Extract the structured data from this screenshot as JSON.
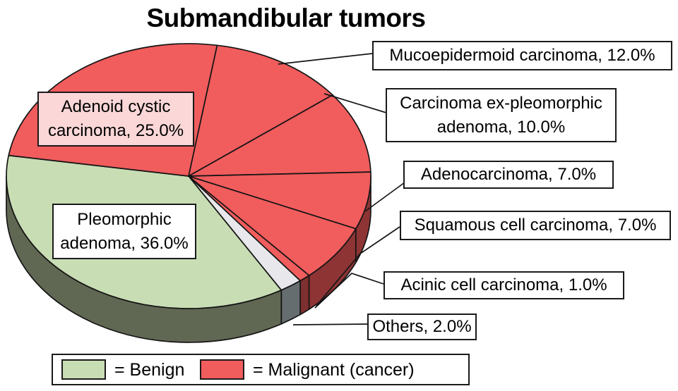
{
  "title": "Submandibular tumors",
  "chart_data": {
    "type": "pie",
    "title": "Submandibular tumors",
    "style": "3d-pie",
    "start_angle_deg": -81,
    "slices": [
      {
        "label": "Mucoepidermoid carcinoma",
        "value": 12.0,
        "group": "malignant",
        "color": "#F15C5D",
        "side_color": "#8E3435"
      },
      {
        "label": "Carcinoma ex-pleomorphic adenoma",
        "value": 10.0,
        "group": "malignant",
        "color": "#F15C5D",
        "side_color": "#8E3435"
      },
      {
        "label": "Adenocarcinoma",
        "value": 7.0,
        "group": "malignant",
        "color": "#F15C5D",
        "side_color": "#8E3435"
      },
      {
        "label": "Squamous cell carcinoma",
        "value": 7.0,
        "group": "malignant",
        "color": "#F15C5D",
        "side_color": "#8E3435"
      },
      {
        "label": "Acinic cell carcinoma",
        "value": 1.0,
        "group": "malignant",
        "color": "#F15C5D",
        "side_color": "#7E2F30"
      },
      {
        "label": "Others",
        "value": 2.0,
        "group": "other",
        "color": "#E8E7EB",
        "side_color": "#666D6F"
      },
      {
        "label": "Pleomorphic adenoma",
        "value": 36.0,
        "group": "benign",
        "color": "#C8DDB4",
        "side_color": "#606853"
      },
      {
        "label": "Adenoid cystic carcinoma",
        "value": 25.0,
        "group": "malignant",
        "color": "#F15C5D",
        "side_color": "#8E3435"
      }
    ]
  },
  "callouts": [
    {
      "text": "Mucoepidermoid carcinoma, 12.0%"
    },
    {
      "text": "Carcinoma ex-pleomorphic adenoma, 10.0%"
    },
    {
      "text": "Adenocarcinoma, 7.0%"
    },
    {
      "text": "Squamous cell carcinoma, 7.0%"
    },
    {
      "text": "Acinic cell carcinoma, 1.0%"
    },
    {
      "text": "Others, 2.0%"
    },
    {
      "text": "Pleomorphic adenoma, 36.0%"
    },
    {
      "text": "Adenoid cystic carcinoma, 25.0%"
    }
  ],
  "legend": {
    "benign_label": "= Benign",
    "malignant_label": "= Malignant (cancer)",
    "benign_color": "#C8DDB4",
    "malignant_color": "#F15C5D"
  }
}
